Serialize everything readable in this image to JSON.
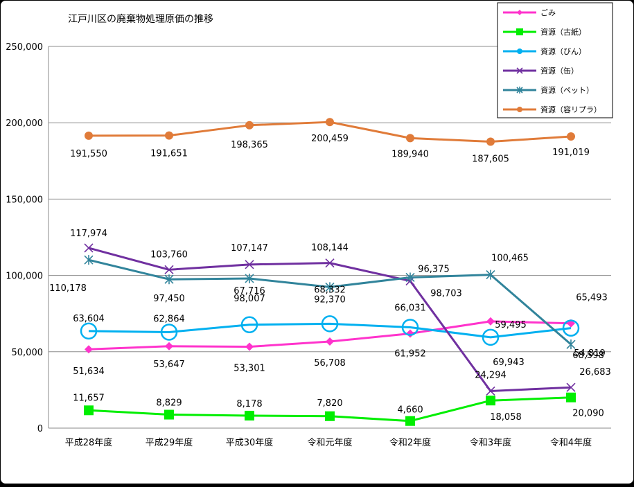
{
  "chart_data": {
    "type": "line",
    "title": "江戸川区の廃棄物処理原価の推移",
    "categories": [
      "平成28年度",
      "平成29年度",
      "平成30年度",
      "令和元年度",
      "令和2年度",
      "令和3年度",
      "令和4年度"
    ],
    "ylim": [
      0,
      250000
    ],
    "yticks": [
      "0",
      "50,000",
      "100,000",
      "150,000",
      "200,000",
      "250,000"
    ],
    "ytick_values": [
      0,
      50000,
      100000,
      150000,
      200000,
      250000
    ],
    "grid": true,
    "legend_position": "top-right",
    "series": [
      {
        "name": "ごみ",
        "color": "#ff33cc",
        "marker": "diamond",
        "values": [
          51634,
          53647,
          53301,
          56708,
          61952,
          69943,
          68598
        ],
        "labels": [
          "51,634",
          "53,647",
          "53,301",
          "56,708",
          "61,952",
          "69,943",
          "68,598"
        ]
      },
      {
        "name": "資源（古紙）",
        "color": "#00ee00",
        "marker": "square",
        "values": [
          11657,
          8829,
          8178,
          7820,
          4660,
          18058,
          20090
        ],
        "labels": [
          "11,657",
          "8,829",
          "8,178",
          "7,820",
          "4,660",
          "18,058",
          "20,090"
        ]
      },
      {
        "name": "資源（びん）",
        "color": "#00b0f0",
        "marker": "circle",
        "values": [
          63604,
          62864,
          67716,
          68332,
          66031,
          59495,
          65493
        ],
        "labels": [
          "63,604",
          "62,864",
          "67,716",
          "68,332",
          "66,031",
          "59,495",
          "65,493"
        ]
      },
      {
        "name": "資源（缶）",
        "color": "#7030a0",
        "marker": "x",
        "values": [
          117974,
          103760,
          107147,
          108144,
          96375,
          24294,
          26683
        ],
        "labels": [
          "117,974",
          "103,760",
          "107,147",
          "108,144",
          "96,375",
          "24,294",
          "26,683"
        ]
      },
      {
        "name": "資源（ペット）",
        "color": "#31849b",
        "marker": "star",
        "values": [
          110178,
          97450,
          98007,
          92370,
          98703,
          100465,
          54819
        ],
        "labels": [
          "110,178",
          "97,450",
          "98,007",
          "92,370",
          "98,703",
          "100,465",
          "54,819"
        ]
      },
      {
        "name": "資源（容リプラ）",
        "color": "#e07b39",
        "marker": "dot",
        "values": [
          191550,
          191651,
          198365,
          200459,
          189940,
          187605,
          191019
        ],
        "labels": [
          "191,550",
          "191,651",
          "198,365",
          "200,459",
          "189,940",
          "187,605",
          "191,019"
        ]
      }
    ]
  }
}
